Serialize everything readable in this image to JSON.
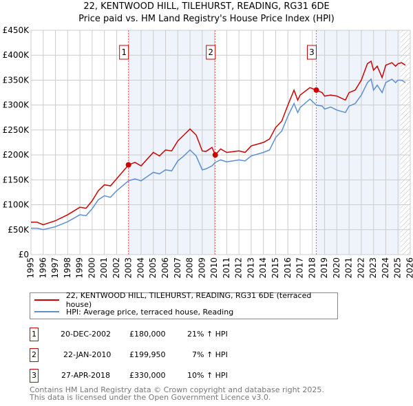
{
  "title": "22, KENTWOOD HILL, TILEHURST, READING, RG31 6DE",
  "subtitle": "Price paid vs. HM Land Registry's House Price Index (HPI)",
  "chart_data": {
    "type": "line",
    "xlim": [
      1995,
      2026
    ],
    "ylim": [
      0,
      450000
    ],
    "x_ticks": [
      "1995",
      "1996",
      "1997",
      "1998",
      "1999",
      "2000",
      "2001",
      "2002",
      "2003",
      "2004",
      "2005",
      "2006",
      "2007",
      "2008",
      "2009",
      "2010",
      "2011",
      "2012",
      "2013",
      "2014",
      "2015",
      "2016",
      "2017",
      "2018",
      "2019",
      "2020",
      "2021",
      "2022",
      "2023",
      "2024",
      "2025",
      "2026"
    ],
    "y_ticks": [
      {
        "v": 0,
        "l": "£0"
      },
      {
        "v": 50000,
        "l": "£50K"
      },
      {
        "v": 100000,
        "l": "£100K"
      },
      {
        "v": 150000,
        "l": "£150K"
      },
      {
        "v": 200000,
        "l": "£200K"
      },
      {
        "v": 250000,
        "l": "£250K"
      },
      {
        "v": 300000,
        "l": "£300K"
      },
      {
        "v": 350000,
        "l": "£350K"
      },
      {
        "v": 400000,
        "l": "£400K"
      },
      {
        "v": 450000,
        "l": "£450K"
      }
    ],
    "grid": true,
    "series": [
      {
        "name": "22, KENTWOOD HILL, TILEHURST, READING, RG31 6DE (terraced house)",
        "color": "#cc0000",
        "x": [
          1995,
          1995.5,
          1996,
          1997,
          1998,
          1999,
          1999.5,
          2000,
          2000.5,
          2001,
          2001.5,
          2002,
          2002.97,
          2003.5,
          2004,
          2005,
          2005.5,
          2006,
          2006.5,
          2007,
          2007.5,
          2008,
          2008.5,
          2009,
          2009.3,
          2009.8,
          2010.06,
          2010.5,
          2011,
          2012,
          2012.5,
          2013,
          2014,
          2014.5,
          2015,
          2015.5,
          2016,
          2016.5,
          2016.8,
          2017,
          2017.8,
          2018.32,
          2018.8,
          2019,
          2019.5,
          2020,
          2020.7,
          2021,
          2021.5,
          2022,
          2022.5,
          2022.8,
          2023,
          2023.3,
          2023.7,
          2024,
          2024.5,
          2024.8,
          2025,
          2025.3,
          2025.6
        ],
        "y": [
          65000,
          65000,
          60000,
          68000,
          80000,
          95000,
          93000,
          108000,
          128000,
          140000,
          138000,
          152000,
          180000,
          185000,
          178000,
          205000,
          198000,
          210000,
          208000,
          228000,
          240000,
          252000,
          240000,
          208000,
          207000,
          215000,
          200000,
          212000,
          205000,
          208000,
          205000,
          218000,
          225000,
          232000,
          255000,
          268000,
          300000,
          330000,
          310000,
          320000,
          335000,
          330000,
          325000,
          318000,
          320000,
          318000,
          310000,
          325000,
          330000,
          350000,
          383000,
          388000,
          370000,
          378000,
          355000,
          380000,
          385000,
          378000,
          383000,
          385000,
          380000
        ]
      },
      {
        "name": "HPI: Average price, terraced house, Reading",
        "color": "#5b8fd0",
        "x": [
          1995,
          1995.5,
          1996,
          1997,
          1998,
          1999,
          1999.5,
          2000,
          2000.5,
          2001,
          2001.5,
          2002,
          2002.97,
          2003.5,
          2004,
          2005,
          2005.5,
          2006,
          2006.5,
          2007,
          2007.5,
          2008,
          2008.5,
          2009,
          2009.3,
          2009.8,
          2010.06,
          2010.5,
          2011,
          2012,
          2012.5,
          2013,
          2014,
          2014.5,
          2015,
          2015.5,
          2016,
          2016.5,
          2016.8,
          2017,
          2017.8,
          2018.32,
          2018.8,
          2019,
          2019.5,
          2020,
          2020.7,
          2021,
          2021.5,
          2022,
          2022.5,
          2022.8,
          2023,
          2023.3,
          2023.7,
          2024,
          2024.5,
          2024.8,
          2025,
          2025.3,
          2025.6
        ],
        "y": [
          53000,
          53000,
          50000,
          56000,
          66000,
          80000,
          78000,
          92000,
          110000,
          118000,
          115000,
          128000,
          148000,
          152000,
          148000,
          165000,
          162000,
          170000,
          168000,
          188000,
          198000,
          210000,
          198000,
          170000,
          172000,
          178000,
          185000,
          190000,
          186000,
          190000,
          188000,
          198000,
          205000,
          210000,
          235000,
          248000,
          278000,
          303000,
          285000,
          295000,
          312000,
          300000,
          298000,
          292000,
          296000,
          290000,
          285000,
          298000,
          303000,
          320000,
          345000,
          352000,
          330000,
          340000,
          325000,
          345000,
          352000,
          345000,
          350000,
          350000,
          345000
        ]
      }
    ],
    "sales": [
      {
        "label": "1",
        "x": 2002.97,
        "y": 180000
      },
      {
        "label": "2",
        "x": 2010.06,
        "y": 199950
      },
      {
        "label": "3",
        "x": 2018.32,
        "y": 330000
      }
    ],
    "hatch_from": 2025.2
  },
  "legend": {
    "red": "22, KENTWOOD HILL, TILEHURST, READING, RG31 6DE (terraced house)",
    "blue": "HPI: Average price, terraced house, Reading"
  },
  "transactions": [
    {
      "num": "1",
      "date": "20-DEC-2002",
      "price": "£180,000",
      "hpi": "21% ↑ HPI"
    },
    {
      "num": "2",
      "date": "22-JAN-2010",
      "price": "£199,950",
      "hpi": "7% ↑ HPI"
    },
    {
      "num": "3",
      "date": "27-APR-2018",
      "price": "£330,000",
      "hpi": "10% ↑ HPI"
    }
  ],
  "footer": [
    "Contains HM Land Registry data © Crown copyright and database right 2025.",
    "This data is licensed under the Open Government Licence v3.0."
  ]
}
